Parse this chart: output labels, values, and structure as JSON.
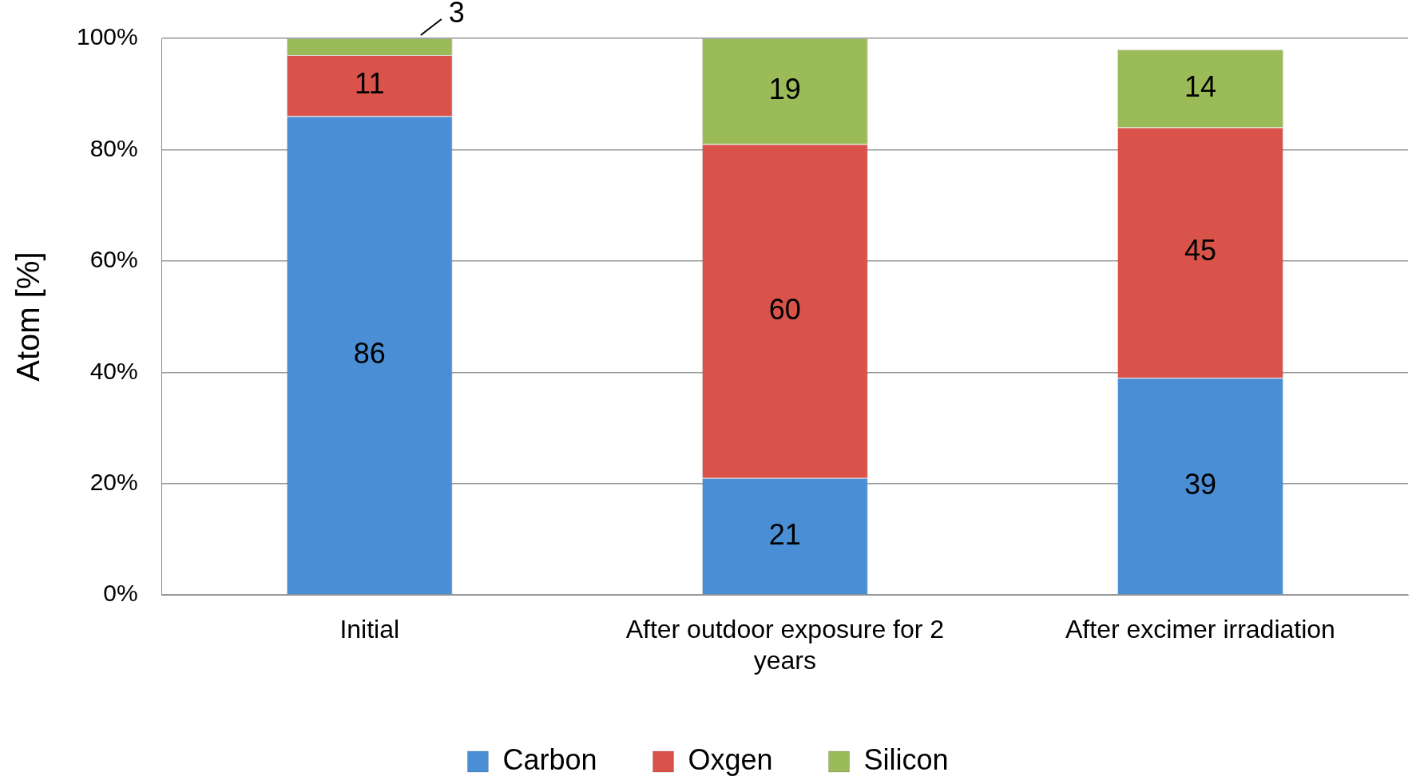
{
  "chart_data": {
    "type": "bar",
    "stacked": true,
    "ylabel": "Atom [%]",
    "categories": [
      "Initial",
      "After outdoor exposure for 2 years",
      "After excimer irradiation"
    ],
    "series": [
      {
        "name": "Carbon",
        "color": "#4a8fd6",
        "values": [
          86,
          21,
          39
        ]
      },
      {
        "name": "Oxgen",
        "color": "#d9534a",
        "values": [
          11,
          60,
          45
        ]
      },
      {
        "name": "Silicon",
        "color": "#9bbb59",
        "values": [
          3,
          19,
          14
        ]
      }
    ],
    "ylim": [
      0,
      100
    ],
    "yticks": [
      {
        "value": 0,
        "label": "0%"
      },
      {
        "value": 20,
        "label": "20%"
      },
      {
        "value": 40,
        "label": "40%"
      },
      {
        "value": 60,
        "label": "60%"
      },
      {
        "value": 80,
        "label": "80%"
      },
      {
        "value": 100,
        "label": "100%"
      }
    ],
    "grid": "y",
    "legend": "bottom",
    "data_labels": true
  }
}
